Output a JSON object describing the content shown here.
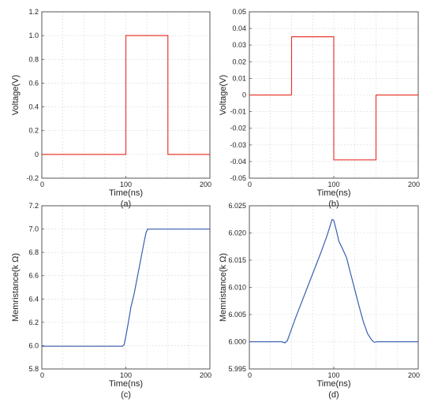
{
  "chart_data": [
    {
      "type": "line",
      "caption": "(a)",
      "xlabel": "Time(ns)",
      "ylabel": "Voltage(V)",
      "xlim": [
        0,
        200
      ],
      "ylim": [
        -0.2,
        1.2
      ],
      "x_ticks": [
        "0",
        "100",
        "200"
      ],
      "y_ticks": [
        "-0.2",
        "0",
        "0.2",
        "0.4",
        "0.6",
        "0.8",
        "1.0",
        "1.2"
      ],
      "grid": true,
      "series": [
        {
          "color": "#e8392f",
          "x": [
            0,
            100,
            100,
            150,
            150,
            200
          ],
          "y": [
            0,
            0,
            1.0,
            1.0,
            0,
            0
          ]
        }
      ]
    },
    {
      "type": "line",
      "caption": "(b)",
      "xlabel": "Time(ns)",
      "ylabel": "Voltage(V)",
      "xlim": [
        0,
        200
      ],
      "ylim": [
        -0.05,
        0.05
      ],
      "x_ticks": [
        "0",
        "100",
        "200"
      ],
      "y_ticks": [
        "-0.05",
        "-0.04",
        "-0.03",
        "-0.02",
        "-0.01",
        "0",
        "0.01",
        "0.02",
        "0.03",
        "0.04",
        "0.05"
      ],
      "grid": true,
      "series": [
        {
          "color": "#e8392f",
          "x": [
            0,
            50,
            50,
            100,
            100,
            150,
            150,
            200
          ],
          "y": [
            0,
            0,
            0.035,
            0.035,
            -0.039,
            -0.039,
            0,
            0
          ]
        }
      ]
    },
    {
      "type": "line",
      "caption": "(c)",
      "xlabel": "Time(ns)",
      "ylabel": "Memristance(k Ω)",
      "xlim": [
        0,
        200
      ],
      "ylim": [
        5.8,
        7.2
      ],
      "x_ticks": [
        "0",
        "100",
        "200"
      ],
      "y_ticks": [
        "5.8",
        "6.0",
        "6.2",
        "6.4",
        "6.6",
        "6.8",
        "7.0",
        "7.2"
      ],
      "grid": true,
      "series": [
        {
          "color": "#3a5fb0",
          "x": [
            0,
            96,
            98,
            100,
            103,
            106,
            110,
            114,
            118,
            122,
            124,
            126,
            200
          ],
          "y": [
            5.995,
            5.995,
            6.01,
            6.08,
            6.2,
            6.33,
            6.45,
            6.6,
            6.75,
            6.9,
            6.97,
            7.0,
            7.0
          ]
        }
      ]
    },
    {
      "type": "line",
      "caption": "(d)",
      "xlabel": "Time(ns)",
      "ylabel": "Memristance(k Ω)",
      "xlim": [
        0,
        200
      ],
      "ylim": [
        5.995,
        6.025
      ],
      "x_ticks": [
        "0",
        "100",
        "200"
      ],
      "y_ticks": [
        "5.995",
        "6.000",
        "6.005",
        "6.010",
        "6.015",
        "6.020",
        "6.025"
      ],
      "grid": true,
      "series": [
        {
          "color": "#3a5fb0",
          "x": [
            0,
            38,
            42,
            45,
            48,
            55,
            65,
            75,
            85,
            92,
            96,
            98,
            100,
            103,
            106,
            110,
            115,
            120,
            125,
            130,
            135,
            140,
            145,
            148,
            152,
            160,
            200
          ],
          "y": [
            6.0,
            6.0,
            5.9998,
            6.0002,
            6.0015,
            6.0045,
            6.0085,
            6.0125,
            6.0165,
            6.0195,
            6.0215,
            6.0225,
            6.0223,
            6.0205,
            6.0185,
            6.0172,
            6.0155,
            6.0125,
            6.0095,
            6.0065,
            6.0037,
            6.0015,
            6.0003,
            5.9999,
            6.0,
            6.0,
            6.0
          ]
        }
      ]
    }
  ]
}
